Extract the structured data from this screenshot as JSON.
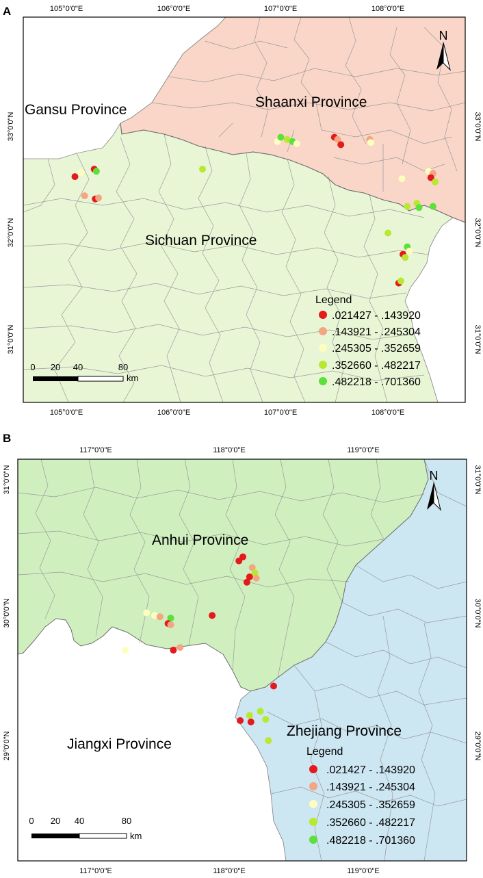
{
  "panels": [
    {
      "letter": "A",
      "top_ticks": [
        "105°0'0\"E",
        "106°0'0\"E",
        "107°0'0\"E",
        "108°0'0\"E"
      ],
      "bottom_ticks": [
        "105°0'0\"E",
        "106°0'0\"E",
        "107°0'0\"E",
        "108°0'0\"E"
      ],
      "left_ticks": [
        "33°0'0\"N",
        "32°0'0\"N",
        "31°0'0\"N"
      ],
      "right_ticks": [
        "33°0'0\"N",
        "32°0'0\"N",
        "31°0'0\"N"
      ],
      "regions": [
        "Gansu Province",
        "Shaanxi Province",
        "Sichuan Province"
      ],
      "north": "N",
      "scale": {
        "labels": [
          "0",
          "20",
          "40",
          "80"
        ],
        "unit": "km"
      },
      "legend": {
        "title": "Legend",
        "classes": [
          ".021427 - .143920",
          ".143921 - .245304",
          ".245305 - .352659",
          ".352660 - .482217",
          ".482218 - .701360"
        ]
      },
      "colors": {
        "shaanxi": "#f9d6c8",
        "sichuan": "#e8f6d6",
        "gansu": "#ffffff",
        "border": "#8a8a8a"
      },
      "points": [
        {
          "lon": 105.08,
          "lat": 32.53,
          "cls": 0
        },
        {
          "lon": 105.14,
          "lat": 32.57,
          "cls": 2
        },
        {
          "lon": 105.26,
          "lat": 32.6,
          "cls": 0
        },
        {
          "lon": 105.28,
          "lat": 32.58,
          "cls": 4
        },
        {
          "lon": 105.17,
          "lat": 32.35,
          "cls": 1
        },
        {
          "lon": 105.27,
          "lat": 32.32,
          "cls": 0
        },
        {
          "lon": 105.3,
          "lat": 32.33,
          "cls": 1
        },
        {
          "lon": 106.27,
          "lat": 32.6,
          "cls": 3
        },
        {
          "lon": 106.97,
          "lat": 32.86,
          "cls": 2
        },
        {
          "lon": 107.0,
          "lat": 32.9,
          "cls": 4
        },
        {
          "lon": 107.06,
          "lat": 32.88,
          "cls": 3
        },
        {
          "lon": 107.11,
          "lat": 32.86,
          "cls": 4
        },
        {
          "lon": 107.15,
          "lat": 32.84,
          "cls": 2
        },
        {
          "lon": 107.5,
          "lat": 32.9,
          "cls": 0
        },
        {
          "lon": 107.53,
          "lat": 32.88,
          "cls": 1
        },
        {
          "lon": 107.56,
          "lat": 32.83,
          "cls": 0
        },
        {
          "lon": 107.83,
          "lat": 32.88,
          "cls": 1
        },
        {
          "lon": 107.84,
          "lat": 32.85,
          "cls": 2
        },
        {
          "lon": 108.13,
          "lat": 32.51,
          "cls": 2
        },
        {
          "lon": 108.38,
          "lat": 32.58,
          "cls": 2
        },
        {
          "lon": 108.42,
          "lat": 32.56,
          "cls": 1
        },
        {
          "lon": 108.4,
          "lat": 32.52,
          "cls": 0
        },
        {
          "lon": 108.44,
          "lat": 32.48,
          "cls": 3
        },
        {
          "lon": 108.27,
          "lat": 32.28,
          "cls": 3
        },
        {
          "lon": 108.29,
          "lat": 32.24,
          "cls": 4
        },
        {
          "lon": 108.18,
          "lat": 32.25,
          "cls": 3
        },
        {
          "lon": 108.42,
          "lat": 32.25,
          "cls": 4
        },
        {
          "lon": 108.0,
          "lat": 32.0,
          "cls": 3
        },
        {
          "lon": 108.18,
          "lat": 31.87,
          "cls": 4
        },
        {
          "lon": 108.2,
          "lat": 31.83,
          "cls": 2
        },
        {
          "lon": 108.14,
          "lat": 31.8,
          "cls": 0
        },
        {
          "lon": 108.16,
          "lat": 31.77,
          "cls": 3
        },
        {
          "lon": 108.1,
          "lat": 31.53,
          "cls": 0
        },
        {
          "lon": 108.12,
          "lat": 31.55,
          "cls": 3
        }
      ]
    },
    {
      "letter": "B",
      "top_ticks": [
        "117°0'0\"E",
        "118°0'0\"E",
        "119°0'0\"E"
      ],
      "bottom_ticks": [
        "117°0'0\"E",
        "118°0'0\"E",
        "119°0'0\"E"
      ],
      "left_ticks": [
        "31°0'0\"N",
        "30°0'0\"N",
        "29°0'0\"N"
      ],
      "right_ticks": [
        "31°0'0\"N",
        "30°0'0\"N",
        "29°0'0\"N"
      ],
      "regions": [
        "Anhui Province",
        "Zhejiang Province",
        "Jiangxi Province"
      ],
      "north": "N",
      "scale": {
        "labels": [
          "0",
          "20",
          "40",
          "80"
        ],
        "unit": "km"
      },
      "legend": {
        "title": "Legend",
        "classes": [
          ".021427 - .143920",
          ".143921 - .245304",
          ".245305 - .352659",
          ".352660 - .482217",
          ".482218 - .701360"
        ]
      },
      "colors": {
        "anhui": "#d0efbf",
        "zhejiang": "#cce6f2",
        "jiangxi": "#ffffff",
        "border": "#8a8a8a"
      },
      "points": [
        {
          "lon": 118.07,
          "lat": 30.39,
          "cls": 0
        },
        {
          "lon": 118.1,
          "lat": 30.42,
          "cls": 0
        },
        {
          "lon": 118.17,
          "lat": 30.34,
          "cls": 1
        },
        {
          "lon": 118.19,
          "lat": 30.3,
          "cls": 3
        },
        {
          "lon": 118.2,
          "lat": 30.26,
          "cls": 1
        },
        {
          "lon": 118.15,
          "lat": 30.27,
          "cls": 0
        },
        {
          "lon": 118.13,
          "lat": 30.23,
          "cls": 0
        },
        {
          "lon": 117.87,
          "lat": 29.98,
          "cls": 0
        },
        {
          "lon": 117.38,
          "lat": 30.0,
          "cls": 2
        },
        {
          "lon": 117.44,
          "lat": 29.98,
          "cls": 2
        },
        {
          "lon": 117.48,
          "lat": 29.97,
          "cls": 1
        },
        {
          "lon": 117.56,
          "lat": 29.96,
          "cls": 4
        },
        {
          "lon": 117.54,
          "lat": 29.92,
          "cls": 0
        },
        {
          "lon": 117.56,
          "lat": 29.91,
          "cls": 1
        },
        {
          "lon": 117.58,
          "lat": 29.72,
          "cls": 0
        },
        {
          "lon": 117.63,
          "lat": 29.74,
          "cls": 1
        },
        {
          "lon": 117.22,
          "lat": 29.72,
          "cls": 2
        },
        {
          "lon": 118.33,
          "lat": 29.45,
          "cls": 0
        },
        {
          "lon": 118.23,
          "lat": 29.26,
          "cls": 3
        },
        {
          "lon": 118.15,
          "lat": 29.23,
          "cls": 3
        },
        {
          "lon": 118.08,
          "lat": 29.19,
          "cls": 0
        },
        {
          "lon": 118.16,
          "lat": 29.18,
          "cls": 0
        },
        {
          "lon": 118.27,
          "lat": 29.2,
          "cls": 3
        },
        {
          "lon": 118.29,
          "lat": 29.04,
          "cls": 3
        }
      ]
    }
  ],
  "class_colors": [
    "#e41a1c",
    "#f4a582",
    "#fdfdc0",
    "#b8e830",
    "#5ce03a"
  ]
}
